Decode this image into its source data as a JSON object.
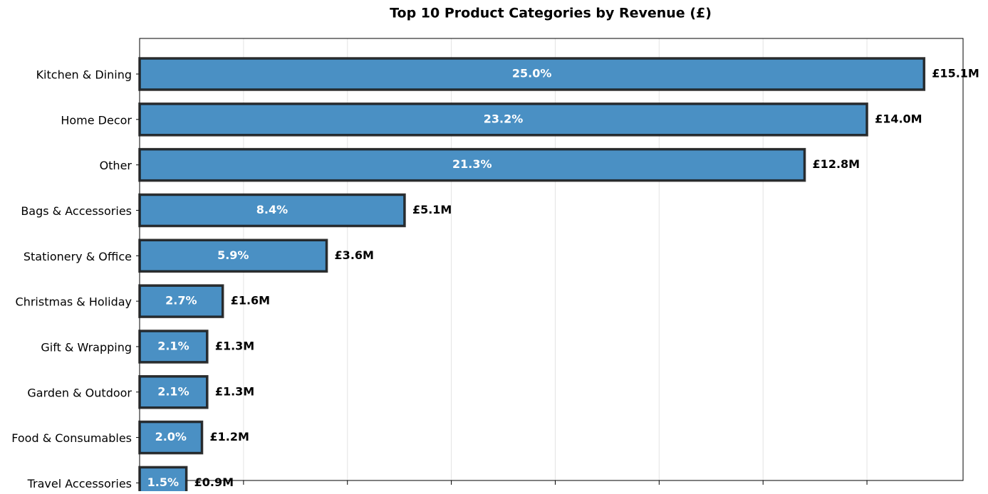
{
  "chart_data": {
    "type": "barh",
    "title": "Top 10 Product Categories by Revenue (£)",
    "categories": [
      "Kitchen & Dining",
      "Home Decor",
      "Other",
      "Bags & Accessories",
      "Stationery & Office",
      "Christmas & Holiday",
      "Gift & Wrapping",
      "Garden & Outdoor",
      "Food & Consumables",
      "Travel Accessories"
    ],
    "values": [
      15.1,
      14.0,
      12.8,
      5.1,
      3.6,
      1.6,
      1.3,
      1.3,
      1.2,
      0.9
    ],
    "value_labels": [
      "£15.1M",
      "£14.0M",
      "£12.8M",
      "£5.1M",
      "£3.6M",
      "£1.6M",
      "£1.3M",
      "£1.3M",
      "£1.2M",
      "£0.9M"
    ],
    "shares": [
      25.0,
      23.2,
      21.3,
      8.4,
      5.9,
      2.7,
      2.1,
      2.1,
      2.0,
      1.5
    ],
    "share_labels": [
      "25.0%",
      "23.2%",
      "21.3%",
      "8.4%",
      "5.9%",
      "2.7%",
      "2.1%",
      "2.1%",
      "2.0%",
      "1.5%"
    ],
    "color": "#4a90c4",
    "edge_color": "#1c1c1c",
    "xlim": [
      0,
      15.85
    ],
    "xticks": [
      0,
      2,
      4,
      6,
      8,
      10,
      12,
      14
    ],
    "grid": true
  }
}
